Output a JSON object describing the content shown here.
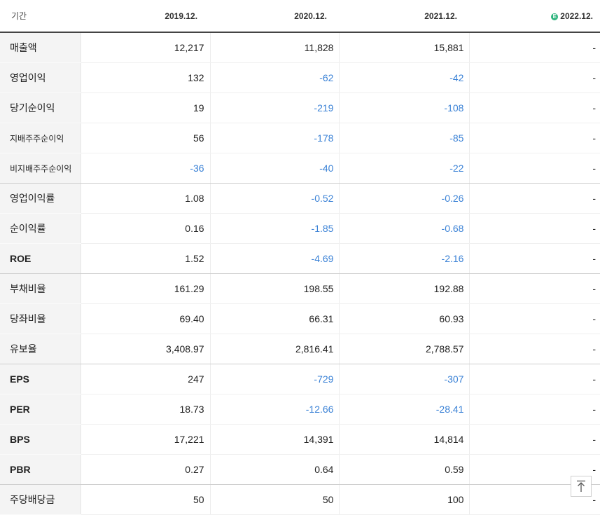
{
  "header": {
    "label": "기간",
    "periods": [
      "2019.12.",
      "2020.12.",
      "2021.12.",
      "2022.12."
    ],
    "estimate_badge": "E"
  },
  "colors": {
    "negative": "#3b82d6",
    "positive": "#222222",
    "estimate_badge": "#2db47d"
  },
  "rows": [
    {
      "label": "매출액",
      "values": [
        "12,217",
        "11,828",
        "15,881",
        "-"
      ]
    },
    {
      "label": "영업이익",
      "values": [
        "132",
        "-62",
        "-42",
        "-"
      ]
    },
    {
      "label": "당기순이익",
      "values": [
        "19",
        "-219",
        "-108",
        "-"
      ]
    },
    {
      "label": "지배주주순이익",
      "values": [
        "56",
        "-178",
        "-85",
        "-"
      ]
    },
    {
      "label": "비지배주주순이익",
      "values": [
        "-36",
        "-40",
        "-22",
        "-"
      ]
    },
    {
      "label": "영업이익률",
      "values": [
        "1.08",
        "-0.52",
        "-0.26",
        "-"
      ]
    },
    {
      "label": "순이익률",
      "values": [
        "0.16",
        "-1.85",
        "-0.68",
        "-"
      ]
    },
    {
      "label": "ROE",
      "values": [
        "1.52",
        "-4.69",
        "-2.16",
        "-"
      ]
    },
    {
      "label": "부채비율",
      "values": [
        "161.29",
        "198.55",
        "192.88",
        "-"
      ]
    },
    {
      "label": "당좌비율",
      "values": [
        "69.40",
        "66.31",
        "60.93",
        "-"
      ]
    },
    {
      "label": "유보율",
      "values": [
        "3,408.97",
        "2,816.41",
        "2,788.57",
        "-"
      ]
    },
    {
      "label": "EPS",
      "values": [
        "247",
        "-729",
        "-307",
        "-"
      ]
    },
    {
      "label": "PER",
      "values": [
        "18.73",
        "-12.66",
        "-28.41",
        "-"
      ]
    },
    {
      "label": "BPS",
      "values": [
        "17,221",
        "14,391",
        "14,814",
        "-"
      ]
    },
    {
      "label": "PBR",
      "values": [
        "0.27",
        "0.64",
        "0.59",
        "-"
      ]
    },
    {
      "label": "주당배당금",
      "values": [
        "50",
        "50",
        "100",
        "-"
      ]
    }
  ],
  "scroll_top_icon": "arrow-up-to-top-icon"
}
